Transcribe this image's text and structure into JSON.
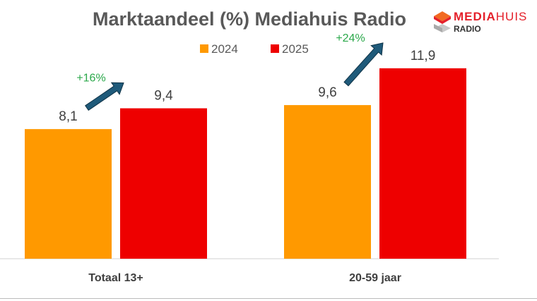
{
  "chart_data": {
    "type": "bar",
    "title": "Marktaandeel (%) Mediahuis Radio",
    "categories": [
      "Totaal 13+",
      "20-59 jaar"
    ],
    "series": [
      {
        "name": "2024",
        "values": [
          8.1,
          9.6
        ],
        "labels": [
          "8,1",
          "9,6"
        ],
        "color": "#ff9900"
      },
      {
        "name": "2025",
        "values": [
          9.4,
          11.9
        ],
        "labels": [
          "9,4",
          "11,9"
        ],
        "color": "#ee0000"
      }
    ],
    "annotations": [
      {
        "text": "+16%",
        "category": "Totaal 13+",
        "color": "#2aa84a"
      },
      {
        "text": "+24%",
        "category": "20-59 jaar",
        "color": "#2aa84a"
      }
    ],
    "arrow_color": "#1f5a7a",
    "ylim": [
      0,
      13
    ],
    "grid": false,
    "legend": "top-center"
  },
  "logo": {
    "name_bold": "MEDIA",
    "name_thin": "HUIS",
    "sub": "RADIO"
  }
}
